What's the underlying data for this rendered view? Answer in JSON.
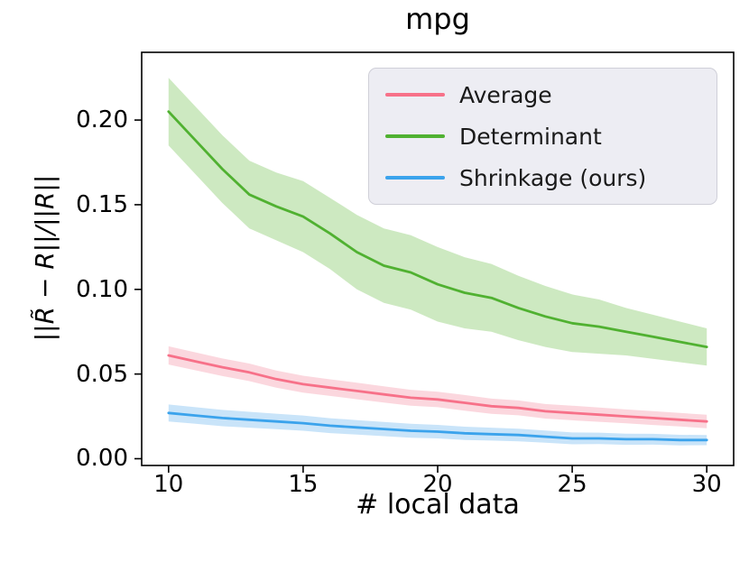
{
  "title": "mpg",
  "chart_data": {
    "type": "line",
    "title": "mpg",
    "xlabel": "# local data",
    "ylabel": "||R̃ − R||/||R||",
    "grid": false,
    "legend_position": "upper right",
    "xlim": [
      9,
      31
    ],
    "ylim": [
      -0.004,
      0.24
    ],
    "xticks": [
      10,
      15,
      20,
      25,
      30
    ],
    "ytick_values": [
      0.0,
      0.05,
      0.1,
      0.15,
      0.2
    ],
    "ytick_labels": [
      "0.00",
      "0.05",
      "0.10",
      "0.15",
      "0.20"
    ],
    "x": [
      10,
      11,
      12,
      13,
      14,
      15,
      16,
      17,
      18,
      19,
      20,
      21,
      22,
      23,
      24,
      25,
      26,
      27,
      28,
      29,
      30
    ],
    "series": [
      {
        "id": "average",
        "name": "Average",
        "color": "#f77189",
        "band_color": "#fbd7de",
        "values": [
          0.061,
          0.0575,
          0.054,
          0.051,
          0.047,
          0.044,
          0.042,
          0.04,
          0.038,
          0.036,
          0.035,
          0.033,
          0.031,
          0.03,
          0.028,
          0.027,
          0.026,
          0.025,
          0.024,
          0.023,
          0.022
        ],
        "band_lower": [
          0.0556,
          0.0522,
          0.0488,
          0.0458,
          0.0419,
          0.039,
          0.0371,
          0.0351,
          0.0332,
          0.0313,
          0.0304,
          0.0284,
          0.0265,
          0.0256,
          0.0237,
          0.0227,
          0.0218,
          0.0209,
          0.0199,
          0.019,
          0.018
        ],
        "band_upper": [
          0.0664,
          0.0628,
          0.0592,
          0.0562,
          0.0521,
          0.049,
          0.0469,
          0.0449,
          0.0428,
          0.0407,
          0.0396,
          0.0376,
          0.0355,
          0.0344,
          0.0323,
          0.0313,
          0.0302,
          0.0291,
          0.0281,
          0.027,
          0.026
        ]
      },
      {
        "id": "determinant",
        "name": "Determinant",
        "color": "#50b131",
        "band_color": "#cde9c1",
        "values": [
          0.205,
          0.188,
          0.171,
          0.156,
          0.149,
          0.143,
          0.133,
          0.122,
          0.114,
          0.11,
          0.103,
          0.098,
          0.095,
          0.089,
          0.084,
          0.08,
          0.078,
          0.075,
          0.072,
          0.069,
          0.066
        ],
        "band_lower": [
          0.185,
          0.168,
          0.151,
          0.136,
          0.129,
          0.122,
          0.112,
          0.1,
          0.092,
          0.088,
          0.081,
          0.077,
          0.075,
          0.07,
          0.066,
          0.063,
          0.062,
          0.061,
          0.059,
          0.057,
          0.055
        ],
        "band_upper": [
          0.225,
          0.208,
          0.191,
          0.176,
          0.169,
          0.164,
          0.154,
          0.144,
          0.136,
          0.132,
          0.125,
          0.119,
          0.115,
          0.108,
          0.102,
          0.097,
          0.094,
          0.089,
          0.085,
          0.081,
          0.077
        ]
      },
      {
        "id": "shrinkage",
        "name": "Shrinkage (ours)",
        "color": "#3ba3ec",
        "band_color": "#c9e4f9",
        "values": [
          0.027,
          0.0255,
          0.024,
          0.023,
          0.022,
          0.021,
          0.0195,
          0.0185,
          0.0175,
          0.0165,
          0.016,
          0.015,
          0.0145,
          0.014,
          0.013,
          0.012,
          0.012,
          0.0115,
          0.0115,
          0.011,
          0.011
        ],
        "band_lower": [
          0.022,
          0.0206,
          0.0192,
          0.0183,
          0.0174,
          0.0165,
          0.0151,
          0.0142,
          0.0133,
          0.0124,
          0.012,
          0.0111,
          0.0107,
          0.0103,
          0.0094,
          0.0085,
          0.0086,
          0.0082,
          0.0083,
          0.0079,
          0.008
        ],
        "band_upper": [
          0.032,
          0.0304,
          0.0288,
          0.0277,
          0.0266,
          0.0255,
          0.0239,
          0.0228,
          0.0217,
          0.0206,
          0.02,
          0.0189,
          0.0183,
          0.0177,
          0.0166,
          0.0155,
          0.0154,
          0.0148,
          0.0147,
          0.0141,
          0.014
        ]
      }
    ]
  }
}
